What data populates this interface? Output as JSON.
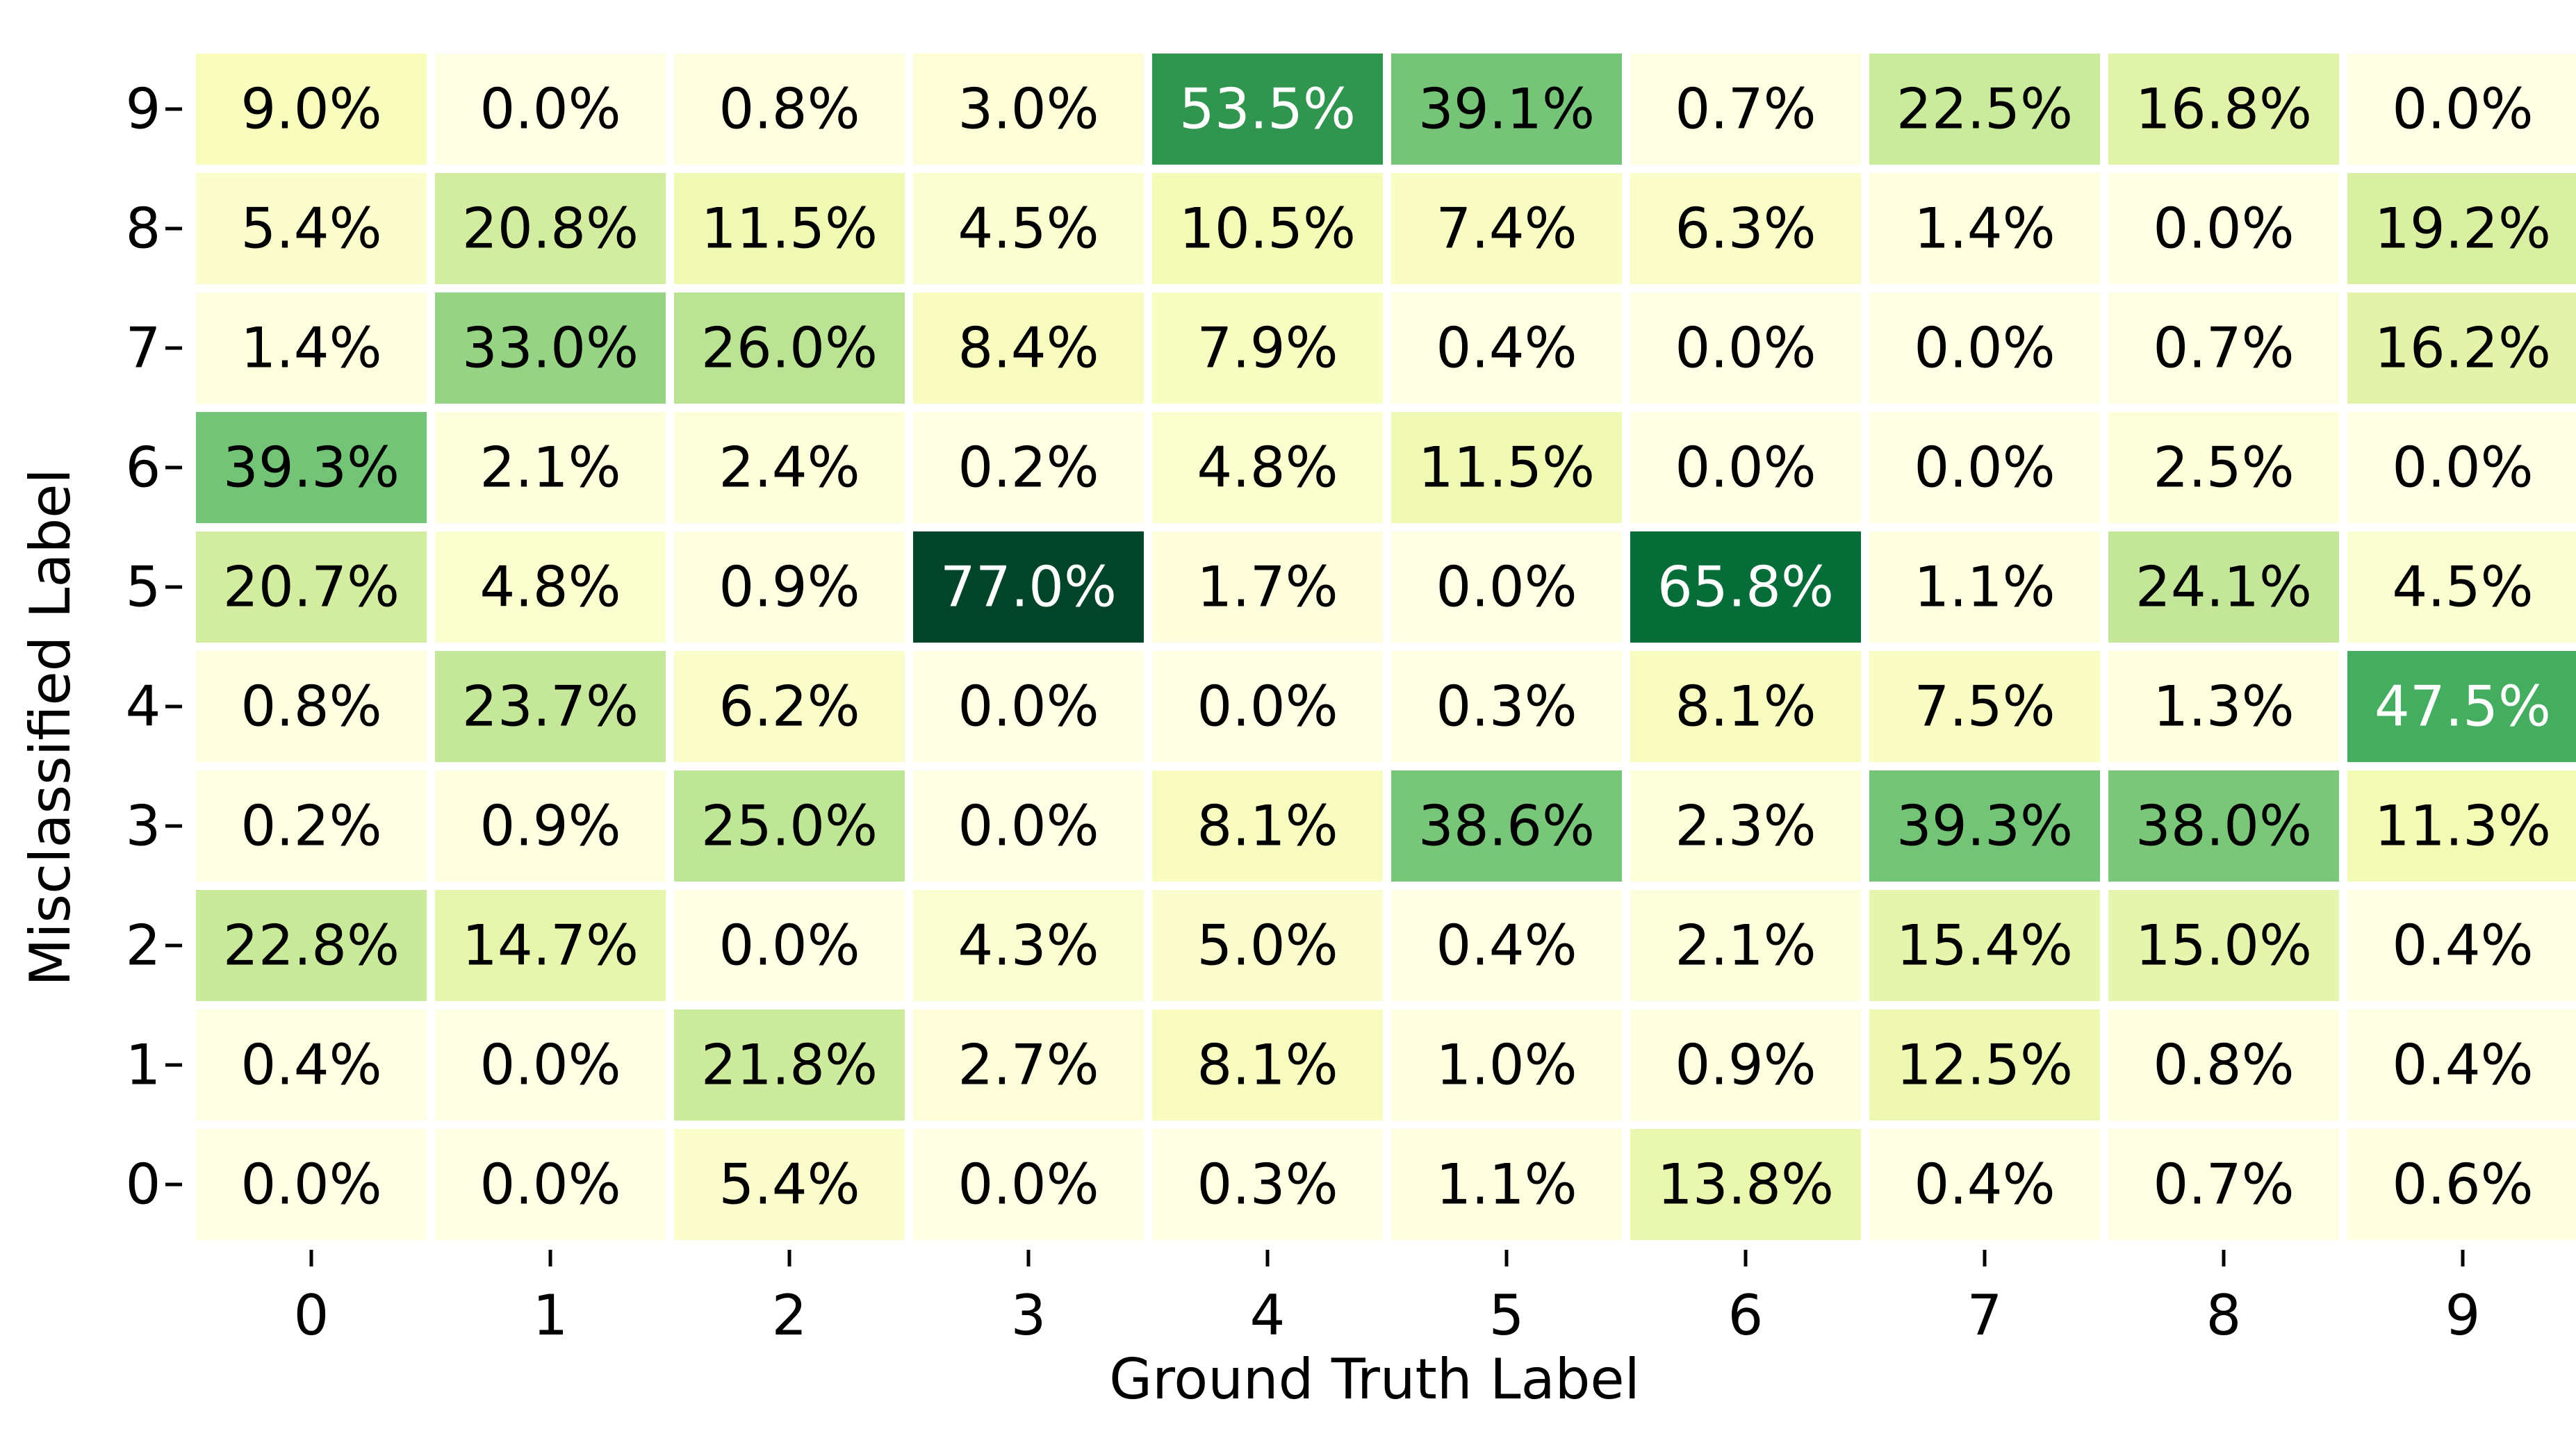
{
  "chart_data": {
    "type": "heatmap",
    "title": "",
    "xlabel": "Ground Truth Label",
    "ylabel": "Misclassified Label",
    "x_categories": [
      "0",
      "1",
      "2",
      "3",
      "4",
      "5",
      "6",
      "7",
      "8",
      "9"
    ],
    "y_categories": [
      "9",
      "8",
      "7",
      "6",
      "5",
      "4",
      "3",
      "2",
      "1",
      "0"
    ],
    "value_format": "{v}%",
    "colormap": "YlGn",
    "color_range": [
      0,
      77
    ],
    "grid": false,
    "legend": "none",
    "values": [
      [
        9.0,
        0.0,
        0.8,
        3.0,
        53.5,
        39.1,
        0.7,
        22.5,
        16.8,
        0.0
      ],
      [
        5.4,
        20.8,
        11.5,
        4.5,
        10.5,
        7.4,
        6.3,
        1.4,
        0.0,
        19.2
      ],
      [
        1.4,
        33.0,
        26.0,
        8.4,
        7.9,
        0.4,
        0.0,
        0.0,
        0.7,
        16.2
      ],
      [
        39.3,
        2.1,
        2.4,
        0.2,
        4.8,
        11.5,
        0.0,
        0.0,
        2.5,
        0.0
      ],
      [
        20.7,
        4.8,
        0.9,
        77.0,
        1.7,
        0.0,
        65.8,
        1.1,
        24.1,
        4.5
      ],
      [
        0.8,
        23.7,
        6.2,
        0.0,
        0.0,
        0.3,
        8.1,
        7.5,
        1.3,
        47.5
      ],
      [
        0.2,
        0.9,
        25.0,
        0.0,
        8.1,
        38.6,
        2.3,
        39.3,
        38.0,
        11.3
      ],
      [
        22.8,
        14.7,
        0.0,
        4.3,
        5.0,
        0.4,
        2.1,
        15.4,
        15.0,
        0.4
      ],
      [
        0.4,
        0.0,
        21.8,
        2.7,
        8.1,
        1.0,
        0.9,
        12.5,
        0.8,
        0.4
      ],
      [
        0.0,
        0.0,
        5.4,
        0.0,
        0.3,
        1.1,
        13.8,
        0.4,
        0.7,
        0.6
      ]
    ],
    "value_labels": [
      [
        "9.0%",
        "0.0%",
        "0.8%",
        "3.0%",
        "53.5%",
        "39.1%",
        "0.7%",
        "22.5%",
        "16.8%",
        "0.0%"
      ],
      [
        "5.4%",
        "20.8%",
        "11.5%",
        "4.5%",
        "10.5%",
        "7.4%",
        "6.3%",
        "1.4%",
        "0.0%",
        "19.2%"
      ],
      [
        "1.4%",
        "33.0%",
        "26.0%",
        "8.4%",
        "7.9%",
        "0.4%",
        "0.0%",
        "0.0%",
        "0.7%",
        "16.2%"
      ],
      [
        "39.3%",
        "2.1%",
        "2.4%",
        "0.2%",
        "4.8%",
        "11.5%",
        "0.0%",
        "0.0%",
        "2.5%",
        "0.0%"
      ],
      [
        "20.7%",
        "4.8%",
        "0.9%",
        "77.0%",
        "1.7%",
        "0.0%",
        "65.8%",
        "1.1%",
        "24.1%",
        "4.5%"
      ],
      [
        "0.8%",
        "23.7%",
        "6.2%",
        "0.0%",
        "0.0%",
        "0.3%",
        "8.1%",
        "7.5%",
        "1.3%",
        "47.5%"
      ],
      [
        "0.2%",
        "0.9%",
        "25.0%",
        "0.0%",
        "8.1%",
        "38.6%",
        "2.3%",
        "39.3%",
        "38.0%",
        "11.3%"
      ],
      [
        "22.8%",
        "14.7%",
        "0.0%",
        "4.3%",
        "5.0%",
        "0.4%",
        "2.1%",
        "15.4%",
        "15.0%",
        "0.4%"
      ],
      [
        "0.4%",
        "0.0%",
        "21.8%",
        "2.7%",
        "8.1%",
        "1.0%",
        "0.9%",
        "12.5%",
        "0.8%",
        "0.4%"
      ],
      [
        "0.0%",
        "0.0%",
        "5.4%",
        "0.0%",
        "0.3%",
        "1.1%",
        "13.8%",
        "0.4%",
        "0.7%",
        "0.6%"
      ]
    ],
    "text_colors": {
      "light": "#ffffff",
      "dark": "#000000"
    },
    "cell_border_color": "#ffffff",
    "tick_color": "#000000"
  }
}
